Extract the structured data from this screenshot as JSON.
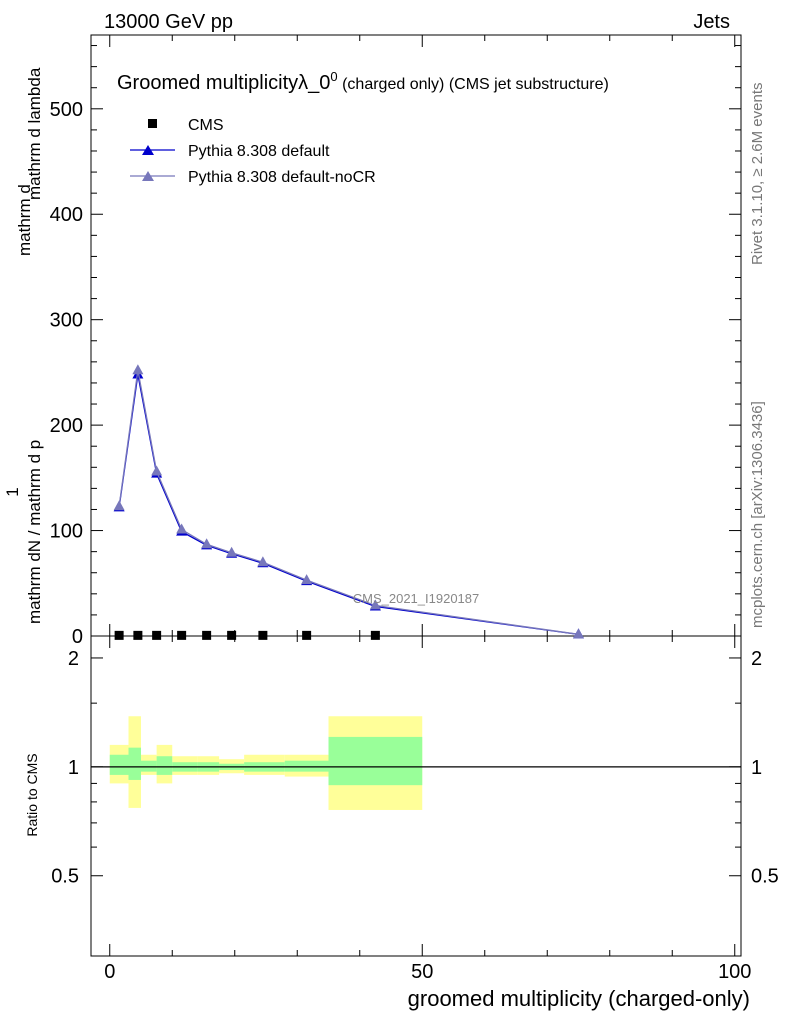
{
  "header": {
    "left": "13000 GeV pp",
    "right": "Jets"
  },
  "side": {
    "rivet": "Rivet 3.1.10, ≥ 2.6M events",
    "mcplots": "mcplots.cern.ch [arXiv:1306.3436]"
  },
  "main_title": "Groomed multiplicityλ_0",
  "main_title_sup": "0",
  "main_title_tail": " (charged only) (CMS jet substructure)",
  "analysis_label": "CMS_2021_I1920187",
  "ylabel_main": {
    "prefix": "1",
    "numerator": "mathrm dN / mathrm d p",
    "num_tail": "mathrm d lambda",
    "den_top": "mathrm d",
    "den_bottom": "mathrm d N / mathrm d p",
    "full": "1 / mathrm d N / mathrm d p_T mathrm d N / mathrm d p_T mathrm d lambda"
  },
  "ylabel_ratio": "Ratio to CMS",
  "xlabel": "groomed multiplicity (charged-only)",
  "legend": [
    {
      "label": "CMS",
      "color": "#000000",
      "marker": "square"
    },
    {
      "label": "Pythia 8.308 default",
      "color": "#0000cc",
      "marker": "triangle"
    },
    {
      "label": "Pythia 8.308 default-noCR",
      "color": "#7777bb",
      "marker": "triangle"
    }
  ],
  "chart_data": {
    "type": "line",
    "x_range": [
      -3,
      101
    ],
    "main_y_range": [
      0,
      570
    ],
    "main_y_ticks": [
      0,
      100,
      200,
      300,
      400,
      500
    ],
    "ratio_y_range": [
      0.3,
      2.3
    ],
    "ratio_y_ticks": [
      0.5,
      1,
      2
    ],
    "x_ticks": [
      0,
      50,
      100
    ],
    "bin_edges": [
      0,
      3,
      5,
      7.5,
      10,
      14,
      17.5,
      21.5,
      28,
      35,
      50,
      100
    ],
    "series": [
      {
        "name": "CMS",
        "x": [
          1.5,
          4.5,
          7.5,
          11.5,
          15.5,
          19.5,
          24.5,
          31.5,
          42.5,
          75
        ],
        "y": [
          0.6,
          0.6,
          0.6,
          0.6,
          0.6,
          0.6,
          0.6,
          0.6,
          0.6,
          0.0
        ]
      },
      {
        "name": "Pythia 8.308 default",
        "x": [
          1.5,
          4.5,
          7.5,
          11.5,
          15.5,
          19.5,
          24.5,
          31.5,
          42.5,
          75
        ],
        "y": [
          122,
          248,
          154,
          99,
          86,
          78,
          69,
          52,
          28,
          1.5
        ]
      },
      {
        "name": "Pythia 8.308 default-noCR",
        "x": [
          1.5,
          4.5,
          7.5,
          11.5,
          15.5,
          19.5,
          24.5,
          31.5,
          42.5,
          75
        ],
        "y": [
          123,
          252,
          156,
          101,
          87,
          79,
          70,
          53,
          29,
          1.6
        ]
      }
    ],
    "ratio_bands": {
      "green": [
        [
          0.95,
          1.08
        ],
        [
          0.92,
          1.13
        ],
        [
          0.97,
          1.04
        ],
        [
          0.95,
          1.07
        ],
        [
          0.97,
          1.03
        ],
        [
          0.97,
          1.03
        ],
        [
          0.98,
          1.02
        ],
        [
          0.97,
          1.03
        ],
        [
          0.97,
          1.04
        ],
        [
          0.89,
          1.21
        ]
      ],
      "yellow": [
        [
          0.9,
          1.15
        ],
        [
          0.77,
          1.38
        ],
        [
          0.95,
          1.08
        ],
        [
          0.9,
          1.15
        ],
        [
          0.95,
          1.07
        ],
        [
          0.95,
          1.07
        ],
        [
          0.96,
          1.05
        ],
        [
          0.95,
          1.08
        ],
        [
          0.94,
          1.08
        ],
        [
          0.76,
          1.38
        ]
      ]
    }
  }
}
